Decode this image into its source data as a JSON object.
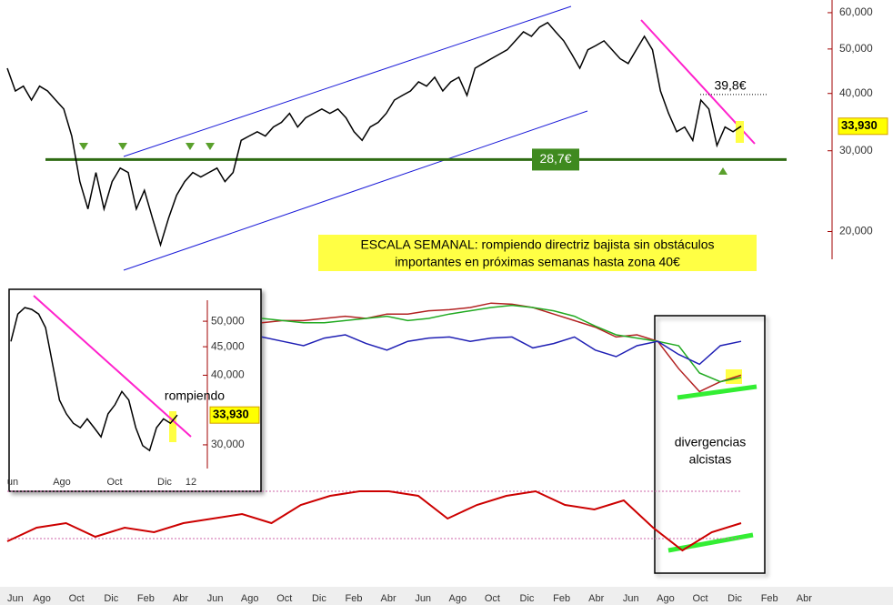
{
  "chart_data": [
    {
      "type": "line",
      "yscale": "log",
      "ylim": [
        17.4,
        62.5
      ],
      "yticks": [
        {
          "value": 60,
          "label": "60,000"
        },
        {
          "value": 50,
          "label": "50,000"
        },
        {
          "value": 40,
          "label": "40,000"
        },
        {
          "value": 30,
          "label": "30,000"
        },
        {
          "value": 20,
          "label": "20,000"
        }
      ],
      "last": {
        "value": 33.93,
        "label": "33,930"
      },
      "hlines": [
        {
          "value": 28.7,
          "label": "28,7€",
          "color": "#2e6b12"
        },
        {
          "value": 39.8,
          "label": "39,8€",
          "color": "#000000"
        }
      ],
      "annotation": [
        "ESCALA SEMANAL: rompiendo directriz bajista sin obstáculos",
        "importantes en próximas semanas hasta zona 40€"
      ],
      "xtick_labels": [
        "Jun",
        "Ago",
        "Oct",
        "Dic",
        "Feb",
        "Abr",
        "Jun",
        "Ago",
        "Oct",
        "Dic",
        "Feb",
        "Abr",
        "Jun",
        "Ago",
        "Oct",
        "Dic",
        "Feb",
        "Abr",
        "Jun",
        "Ago",
        "Oct",
        "Dic",
        "Feb",
        "Abr"
      ],
      "series": [
        {
          "color": "#000000",
          "values": [
            45.4,
            40.5,
            41.5,
            38.7,
            41.5,
            40.5,
            38.7,
            37.0,
            32.3,
            25.7,
            22.4,
            26.9,
            22.4,
            25.7,
            27.5,
            26.9,
            22.4,
            24.6,
            21.4,
            18.7,
            21.4,
            24.0,
            25.7,
            26.9,
            26.3,
            26.9,
            27.5,
            25.7,
            26.9,
            31.6,
            32.3,
            33.0,
            32.3,
            33.8,
            34.6,
            36.2,
            33.8,
            35.4,
            36.2,
            37.0,
            36.2,
            37.0,
            35.4,
            33.0,
            31.6,
            33.8,
            34.6,
            36.2,
            38.7,
            39.6,
            40.5,
            42.4,
            41.5,
            43.4,
            40.5,
            42.4,
            43.4,
            39.6,
            45.4,
            46.5,
            47.6,
            48.7,
            49.8,
            52.1,
            54.5,
            53.3,
            55.8,
            57.1,
            54.5,
            52.1,
            48.7,
            45.4,
            49.8,
            50.9,
            52.1,
            49.8,
            47.6,
            46.5,
            49.8,
            53.3,
            49.8,
            40.5,
            36.2,
            33.0,
            33.8,
            31.6,
            38.7,
            37.0,
            30.8,
            33.8,
            33.0,
            33.93
          ]
        }
      ]
    },
    {
      "type": "line",
      "yscale": "log",
      "ylim": [
        27.2,
        56.2
      ],
      "yticks": [
        {
          "value": 50,
          "label": "50,000"
        },
        {
          "value": 45,
          "label": "45,000"
        },
        {
          "value": 40,
          "label": "40,000"
        },
        {
          "value": 30,
          "label": "30,000"
        }
      ],
      "last": {
        "value": 33.93,
        "label": "33,930"
      },
      "annotation": [
        "rompiendo"
      ],
      "xtick_labels": [
        "un",
        "Ago",
        "Oct",
        "Dic",
        "12"
      ],
      "series": [
        {
          "color": "#000000",
          "values": [
            46.0,
            51.5,
            52.9,
            52.5,
            51.5,
            48.7,
            41.9,
            36.1,
            34.1,
            32.8,
            32.2,
            33.4,
            32.2,
            31.0,
            34.1,
            35.4,
            37.4,
            36.1,
            32.2,
            29.9,
            29.3,
            32.2,
            33.4,
            32.8,
            33.93
          ]
        }
      ]
    },
    {
      "type": "line",
      "ylim": [
        0,
        100
      ],
      "annotation": [
        "divergencias",
        "alcistas"
      ],
      "series": [
        {
          "color": "#b22222",
          "values": [
            71,
            73,
            73,
            75,
            77,
            75,
            79,
            79,
            82,
            83,
            85,
            89,
            88,
            85,
            79,
            73,
            67,
            58,
            60,
            54,
            29,
            8,
            17,
            23
          ]
        },
        {
          "color": "#22aa22",
          "values": [
            75,
            73,
            71,
            71,
            73,
            75,
            77,
            73,
            75,
            79,
            82,
            85,
            87,
            85,
            82,
            77,
            68,
            60,
            57,
            54,
            50,
            25,
            17,
            21
          ]
        },
        {
          "color": "#1f1fb4",
          "values": [
            58,
            54,
            50,
            57,
            60,
            52,
            46,
            54,
            57,
            58,
            54,
            57,
            58,
            48,
            52,
            58,
            46,
            40,
            50,
            54,
            42,
            33,
            50,
            54
          ]
        }
      ]
    },
    {
      "type": "line",
      "ylim": [
        0,
        100
      ],
      "ref_lines": [
        80,
        28
      ],
      "series": [
        {
          "color": "#cc0000",
          "values": [
            25,
            40,
            45,
            30,
            40,
            35,
            45,
            50,
            55,
            45,
            65,
            75,
            80,
            80,
            75,
            50,
            65,
            75,
            80,
            65,
            60,
            70,
            40,
            15,
            35,
            45
          ]
        }
      ]
    }
  ]
}
